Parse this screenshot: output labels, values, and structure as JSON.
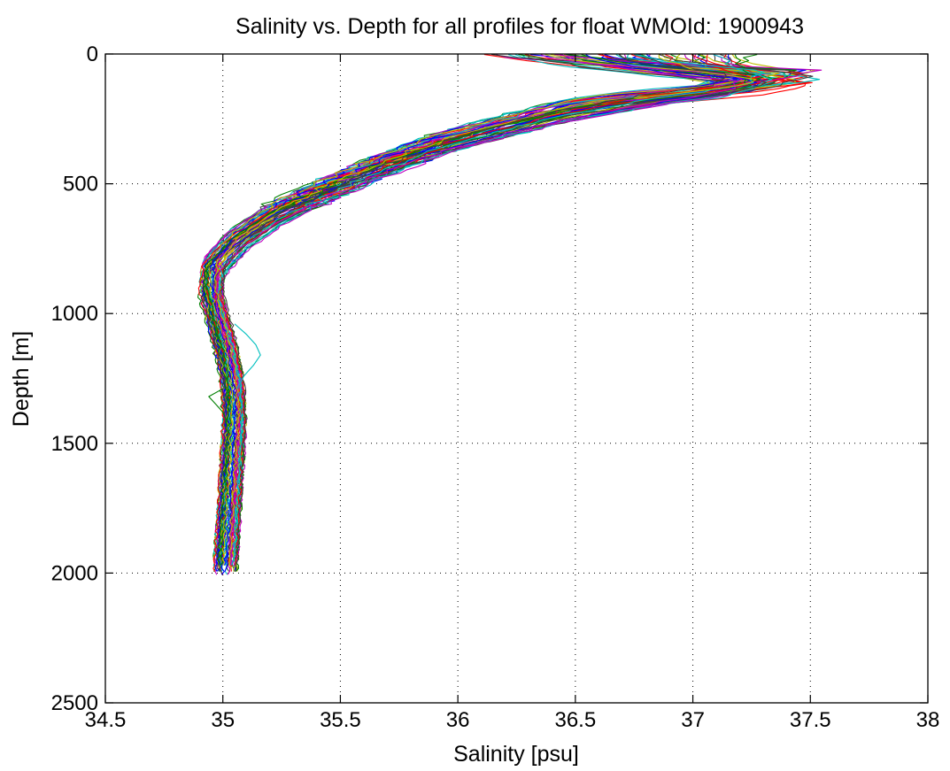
{
  "chart_data": {
    "type": "line",
    "title": "Salinity vs. Depth for all profiles for float WMOId: 1900943",
    "xlabel": "Salinity [psu]",
    "ylabel": "Depth [m]",
    "xlim": [
      34.5,
      38
    ],
    "ylim": [
      0,
      2500
    ],
    "y_reversed": true,
    "grid": true,
    "x_ticks": [
      "34.5",
      "35",
      "35.5",
      "36",
      "36.5",
      "37",
      "37.5",
      "38"
    ],
    "y_ticks": [
      "0",
      "500",
      "1000",
      "1500",
      "2000",
      "2500"
    ],
    "colors": [
      "#0000ff",
      "#007f00",
      "#ff0000",
      "#00bfbf",
      "#bf00bf",
      "#bfbf00",
      "#3f3f3f"
    ],
    "profile_count": 70,
    "representative_profile": {
      "depth": [
        5,
        40,
        65,
        80,
        100,
        130,
        170,
        220,
        280,
        350,
        430,
        520,
        620,
        720,
        820,
        920,
        1020,
        1120,
        1250,
        1400,
        1550,
        1700,
        1850,
        2000
      ],
      "salinity": [
        36.85,
        37.05,
        37.15,
        37.2,
        37.18,
        37.05,
        36.78,
        36.48,
        36.2,
        35.92,
        35.68,
        35.45,
        35.22,
        35.06,
        34.96,
        34.95,
        34.98,
        35.01,
        35.04,
        35.05,
        35.04,
        35.03,
        35.02,
        35.01
      ]
    },
    "anomalies": [
      {
        "depth": [
          1040,
          1080,
          1120,
          1160,
          1200,
          1240,
          1290
        ],
        "salinity": [
          35.05,
          35.1,
          35.14,
          35.16,
          35.13,
          35.09,
          35.06
        ]
      },
      {
        "depth": [
          1290,
          1320,
          1350,
          1380,
          1420
        ],
        "salinity": [
          35.0,
          34.94,
          34.97,
          35.0,
          35.02
        ]
      }
    ]
  }
}
